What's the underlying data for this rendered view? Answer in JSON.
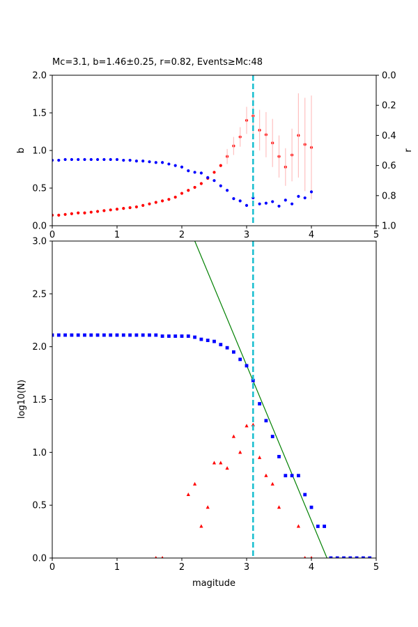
{
  "chart_data": [
    {
      "type": "scatter",
      "title": "Mc=3.1, b=1.46±0.25, r=0.82, Events≥Mc:48",
      "xlabel": "",
      "ylabel": "b",
      "y2label": "r",
      "xlim": [
        0,
        5
      ],
      "ylim": [
        0,
        2
      ],
      "y2lim": [
        1.0,
        0.0
      ],
      "y2_inverted": true,
      "x_ticks": [
        "0",
        "1",
        "2",
        "3",
        "4",
        "5"
      ],
      "y_ticks": [
        "0.0",
        "0.5",
        "1.0",
        "1.5",
        "2.0"
      ],
      "y2_ticks": [
        "0.0",
        "0.2",
        "0.4",
        "0.6",
        "0.8",
        "1.0"
      ],
      "grid": false,
      "mc_line": {
        "x": 3.1,
        "color": "#17becf",
        "style": "dashed"
      },
      "series": [
        {
          "axis": "b",
          "color": "#ff0000",
          "marker": "circle",
          "x": [
            0.0,
            0.1,
            0.2,
            0.3,
            0.4,
            0.5,
            0.6,
            0.7,
            0.8,
            0.9,
            1.0,
            1.1,
            1.2,
            1.3,
            1.4,
            1.5,
            1.6,
            1.7,
            1.8,
            1.9,
            2.0,
            2.1,
            2.2,
            2.3,
            2.4,
            2.5,
            2.6,
            2.7,
            2.8,
            2.9,
            3.0,
            3.1,
            3.2,
            3.3,
            3.4,
            3.5,
            3.6,
            3.7,
            3.8,
            3.9,
            4.0
          ],
          "values": [
            0.14,
            0.14,
            0.15,
            0.16,
            0.17,
            0.17,
            0.18,
            0.19,
            0.2,
            0.21,
            0.22,
            0.23,
            0.24,
            0.25,
            0.27,
            0.29,
            0.31,
            0.33,
            0.35,
            0.38,
            0.43,
            0.47,
            0.51,
            0.56,
            0.63,
            0.71,
            0.8,
            0.92,
            1.06,
            1.18,
            1.4,
            1.46,
            1.27,
            1.21,
            1.1,
            0.92,
            0.78,
            0.94,
            1.2,
            1.08,
            1.04
          ]
        },
        {
          "axis": "b_error",
          "color": "#ffc0c0",
          "x": [
            2.7,
            2.8,
            2.9,
            3.0,
            3.1,
            3.2,
            3.3,
            3.4,
            3.5,
            3.6,
            3.7,
            3.8,
            3.9,
            4.0
          ],
          "errors": [
            0.1,
            0.12,
            0.13,
            0.18,
            0.25,
            0.27,
            0.3,
            0.32,
            0.28,
            0.25,
            0.35,
            0.56,
            0.62,
            0.69
          ]
        },
        {
          "axis": "r",
          "color": "#0000ff",
          "marker": "circle",
          "x": [
            0.0,
            0.1,
            0.2,
            0.3,
            0.4,
            0.5,
            0.6,
            0.7,
            0.8,
            0.9,
            1.0,
            1.1,
            1.2,
            1.3,
            1.4,
            1.5,
            1.6,
            1.7,
            1.8,
            1.9,
            2.0,
            2.1,
            2.2,
            2.3,
            2.4,
            2.5,
            2.6,
            2.7,
            2.8,
            2.9,
            3.0,
            3.1,
            3.2,
            3.3,
            3.4,
            3.5,
            3.6,
            3.7,
            3.8,
            3.9,
            4.0
          ],
          "values": [
            0.565,
            0.565,
            0.56,
            0.56,
            0.56,
            0.56,
            0.56,
            0.56,
            0.56,
            0.56,
            0.56,
            0.565,
            0.565,
            0.57,
            0.57,
            0.575,
            0.58,
            0.58,
            0.59,
            0.6,
            0.61,
            0.635,
            0.645,
            0.65,
            0.68,
            0.7,
            0.735,
            0.765,
            0.82,
            0.835,
            0.865,
            0.815,
            0.855,
            0.85,
            0.84,
            0.87,
            0.83,
            0.855,
            0.805,
            0.815,
            0.775
          ]
        }
      ]
    },
    {
      "type": "scatter",
      "title": "",
      "xlabel": "magitude",
      "ylabel": "log10(N)",
      "xlim": [
        0,
        5
      ],
      "ylim": [
        0,
        3
      ],
      "x_ticks": [
        "0",
        "1",
        "2",
        "3",
        "4",
        "5"
      ],
      "y_ticks": [
        "0.0",
        "0.5",
        "1.0",
        "1.5",
        "2.0",
        "2.5",
        "3.0"
      ],
      "grid": false,
      "mc_line": {
        "x": 3.1,
        "color": "#17becf",
        "style": "dashed"
      },
      "fit_line": {
        "color": "#008000",
        "x": [
          2.2,
          4.24
        ],
        "y": [
          3.0,
          0.0
        ]
      },
      "series": [
        {
          "name": "",
          "color": "#0000ff",
          "marker": "square",
          "x": [
            0.0,
            0.1,
            0.2,
            0.3,
            0.4,
            0.5,
            0.6,
            0.7,
            0.8,
            0.9,
            1.0,
            1.1,
            1.2,
            1.3,
            1.4,
            1.5,
            1.6,
            1.7,
            1.8,
            1.9,
            2.0,
            2.1,
            2.2,
            2.3,
            2.4,
            2.5,
            2.6,
            2.7,
            2.8,
            2.9,
            3.0,
            3.1,
            3.2,
            3.3,
            3.4,
            3.5,
            3.6,
            3.7,
            3.8,
            3.9,
            4.0,
            4.1,
            4.2,
            4.3,
            4.4,
            4.5,
            4.6,
            4.7,
            4.8,
            4.9
          ],
          "values": [
            2.11,
            2.11,
            2.11,
            2.11,
            2.11,
            2.11,
            2.11,
            2.11,
            2.11,
            2.11,
            2.11,
            2.11,
            2.11,
            2.11,
            2.11,
            2.11,
            2.11,
            2.1,
            2.1,
            2.1,
            2.1,
            2.1,
            2.09,
            2.07,
            2.06,
            2.05,
            2.02,
            1.99,
            1.95,
            1.88,
            1.82,
            1.68,
            1.46,
            1.3,
            1.15,
            0.96,
            0.78,
            0.78,
            0.78,
            0.6,
            0.48,
            0.3,
            0.3,
            0.0,
            0.0,
            0.0,
            0.0,
            0.0,
            0.0,
            0.0
          ]
        },
        {
          "name": "",
          "color": "#ff0000",
          "marker": "triangle",
          "x": [
            1.6,
            1.7,
            2.1,
            2.2,
            2.3,
            2.4,
            2.5,
            2.6,
            2.7,
            2.8,
            2.9,
            3.0,
            3.1,
            3.2,
            3.3,
            3.4,
            3.5,
            3.8,
            3.9,
            4.0
          ],
          "values": [
            0.0,
            0.0,
            0.6,
            0.7,
            0.3,
            0.48,
            0.9,
            0.9,
            0.85,
            1.15,
            1.0,
            1.25,
            1.26,
            0.95,
            0.78,
            0.7,
            0.48,
            0.3,
            0.0,
            0.0
          ]
        }
      ]
    }
  ]
}
